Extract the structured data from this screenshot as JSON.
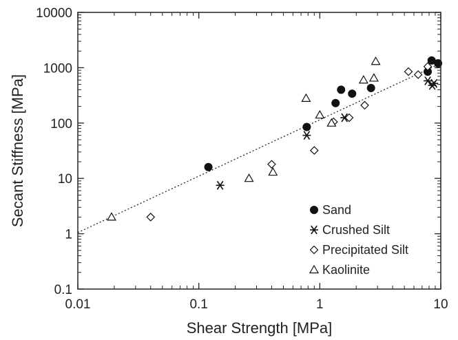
{
  "chart_data": {
    "type": "scatter",
    "title": "",
    "xlabel": "Shear Strength [MPa]",
    "ylabel": "Secant Stiffness [MPa]",
    "xscale": "log",
    "yscale": "log",
    "xlim": [
      0.01,
      10
    ],
    "ylim": [
      0.1,
      10000
    ],
    "xticks": [
      "0.01",
      "0.1",
      "1",
      "10"
    ],
    "yticks": [
      "0.1",
      "1",
      "10",
      "100",
      "1000",
      "10000"
    ],
    "grid": false,
    "legend_position": "bottom-right",
    "series": [
      {
        "name": "Sand",
        "marker": "filled-circle",
        "points": [
          [
            0.12,
            16
          ],
          [
            0.78,
            85
          ],
          [
            1.35,
            230
          ],
          [
            1.5,
            400
          ],
          [
            1.85,
            340
          ],
          [
            2.65,
            430
          ],
          [
            7.8,
            850
          ],
          [
            8.4,
            1350
          ],
          [
            9.5,
            1200
          ]
        ]
      },
      {
        "name": "Crushed Silt",
        "marker": "asterisk",
        "points": [
          [
            0.15,
            7.5
          ],
          [
            0.78,
            60
          ],
          [
            1.6,
            125
          ],
          [
            7.8,
            580
          ],
          [
            8.5,
            480
          ],
          [
            8.8,
            520
          ]
        ]
      },
      {
        "name": "Precipitated Silt",
        "marker": "diamond",
        "points": [
          [
            0.04,
            2.0
          ],
          [
            0.4,
            18
          ],
          [
            0.9,
            32
          ],
          [
            1.3,
            105
          ],
          [
            1.75,
            125
          ],
          [
            2.35,
            210
          ],
          [
            5.4,
            850
          ],
          [
            6.5,
            750
          ],
          [
            7.8,
            1050
          ]
        ]
      },
      {
        "name": "Kaolinite",
        "marker": "triangle",
        "points": [
          [
            0.019,
            2.0
          ],
          [
            0.26,
            10
          ],
          [
            0.41,
            13
          ],
          [
            0.77,
            280
          ],
          [
            1.0,
            140
          ],
          [
            1.25,
            100
          ],
          [
            2.3,
            600
          ],
          [
            2.8,
            650
          ],
          [
            2.9,
            1300
          ]
        ]
      }
    ],
    "trendline": {
      "style": "dotted",
      "x": [
        0.01,
        10
      ],
      "y": [
        1.05,
        1200
      ]
    }
  }
}
